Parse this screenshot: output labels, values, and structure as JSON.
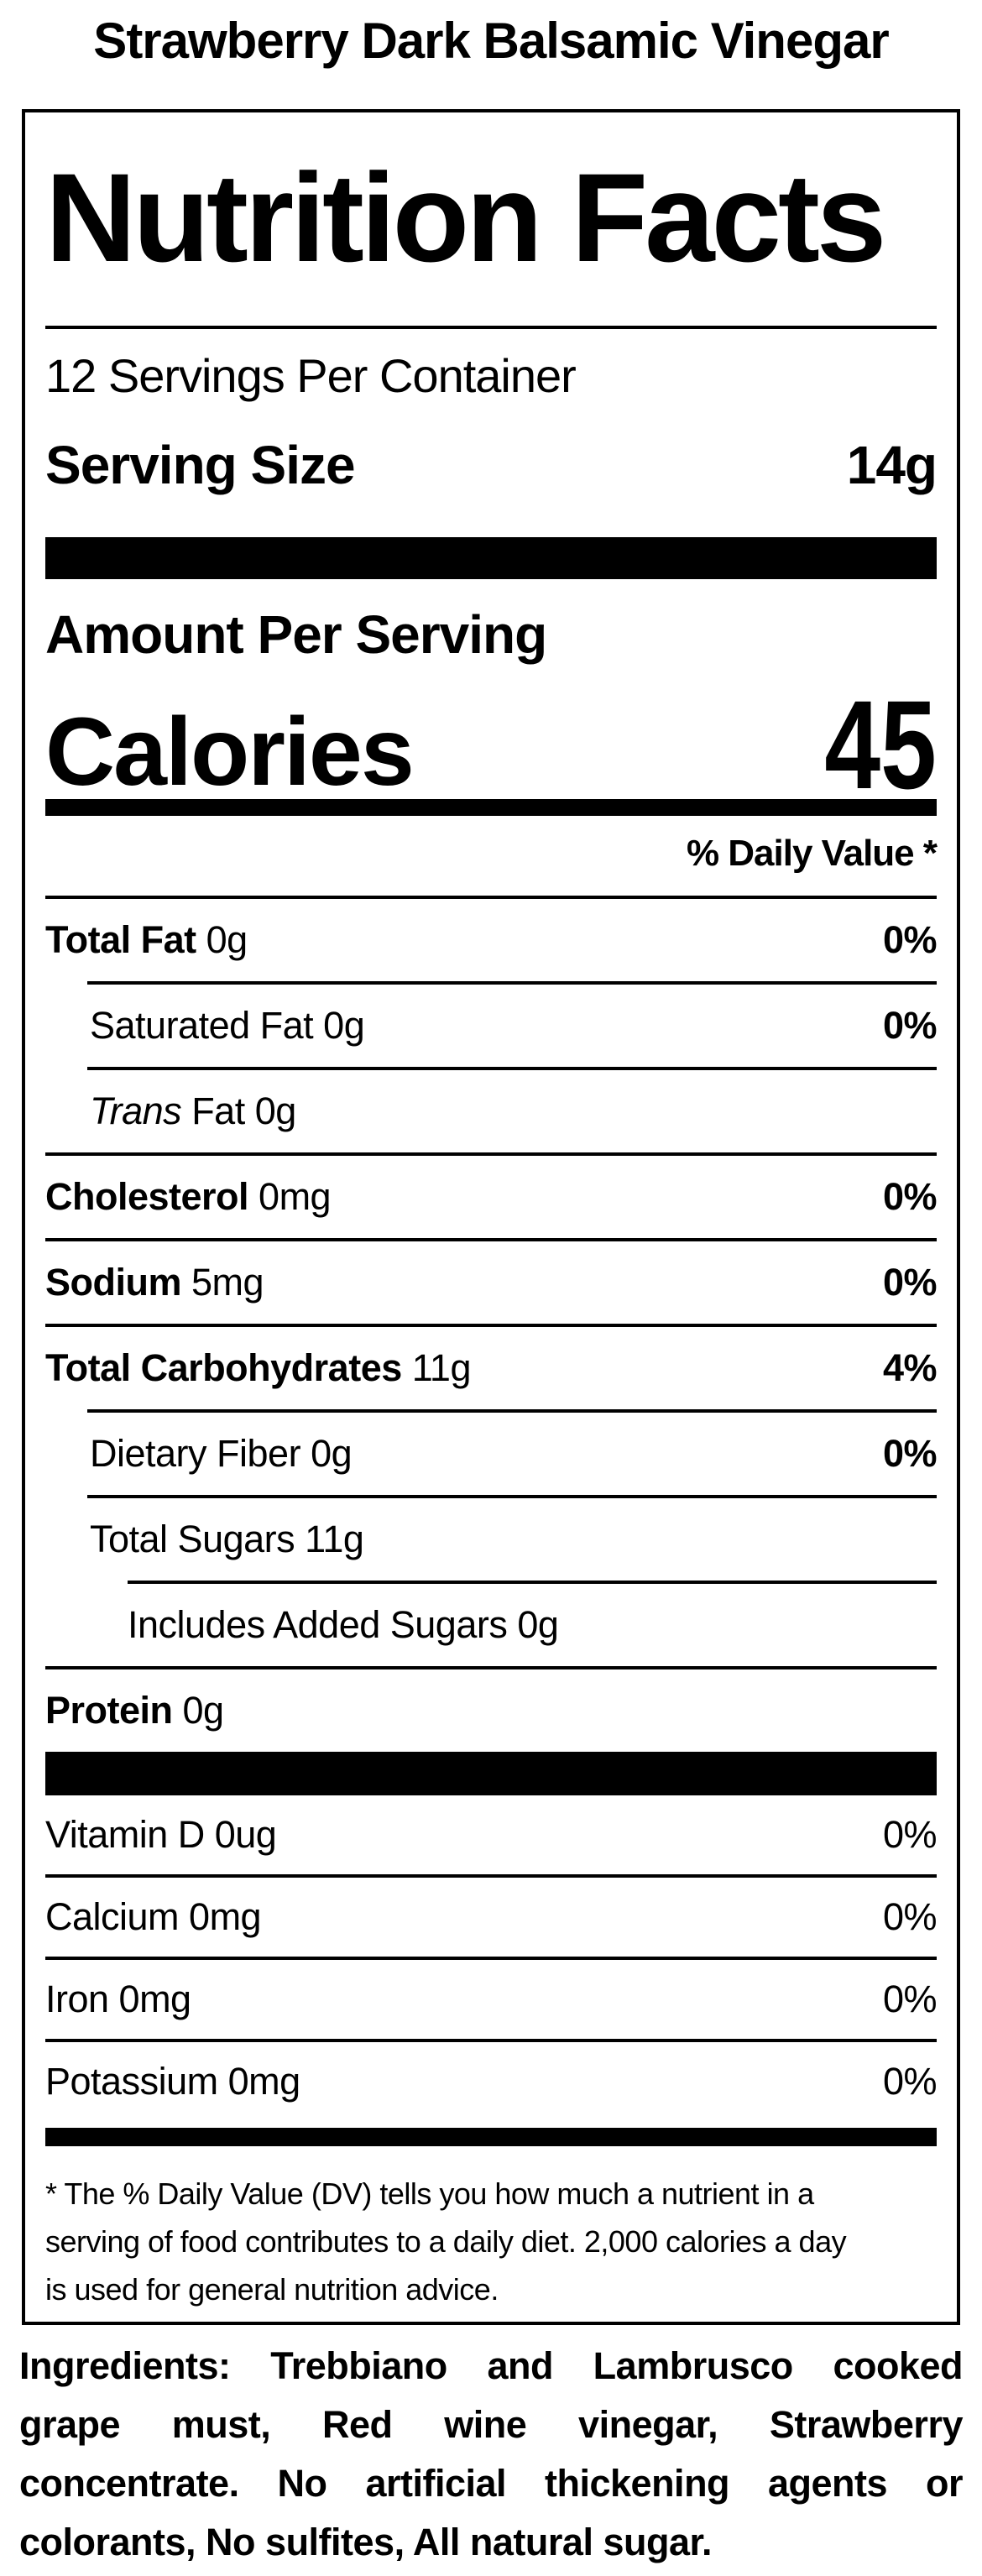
{
  "product_title": "Strawberry Dark Balsamic Vinegar",
  "label": {
    "heading": "Nutrition Facts",
    "servings_per_container": "12 Servings Per Container",
    "serving_size": {
      "label": "Serving Size",
      "value": "14g"
    },
    "amount_per_serving": "Amount Per Serving",
    "calories": {
      "label": "Calories",
      "value": "45"
    },
    "daily_value_header": "% Daily Value *",
    "rows": [
      {
        "name": "Total Fat",
        "amount": "0g",
        "dv": "0%"
      },
      {
        "name": "Saturated Fat",
        "amount": "0g",
        "dv": "0%"
      },
      {
        "name": "Trans",
        "suffix": "Fat",
        "amount": "0g",
        "dv": ""
      },
      {
        "name": "Cholesterol",
        "amount": "0mg",
        "dv": "0%"
      },
      {
        "name": "Sodium",
        "amount": "5mg",
        "dv": "0%"
      },
      {
        "name": "Total Carbohydrates",
        "amount": "11g",
        "dv": "4%"
      },
      {
        "name": "Dietary Fiber",
        "amount": "0g",
        "dv": "0%"
      },
      {
        "name": "Total Sugars",
        "amount": "11g",
        "dv": ""
      },
      {
        "name": "Includes Added Sugars",
        "amount": "0g",
        "dv": ""
      },
      {
        "name": "Protein",
        "amount": "0g",
        "dv": ""
      },
      {
        "name": "Vitamin D",
        "amount": "0ug",
        "dv": "0%"
      },
      {
        "name": "Calcium",
        "amount": "0mg",
        "dv": "0%"
      },
      {
        "name": "Iron",
        "amount": "0mg",
        "dv": "0%"
      },
      {
        "name": "Potassium",
        "amount": "0mg",
        "dv": "0%"
      }
    ],
    "footnote_lines": [
      "* The % Daily Value (DV) tells you how much a nutrient in a",
      "serving of food contributes to a daily diet. 2,000 calories a day",
      "is used for general nutrition advice."
    ]
  },
  "ingredients_lines": [
    "Ingredients: Trebbiano and Lambrusco cooked",
    "grape must, Red wine vinegar, Strawberry",
    "concentrate. No artificial thickening agents or",
    "colorants, No sulfites, All natural sugar."
  ],
  "colors": {
    "ink": "#000000",
    "paper": "#ffffff"
  }
}
